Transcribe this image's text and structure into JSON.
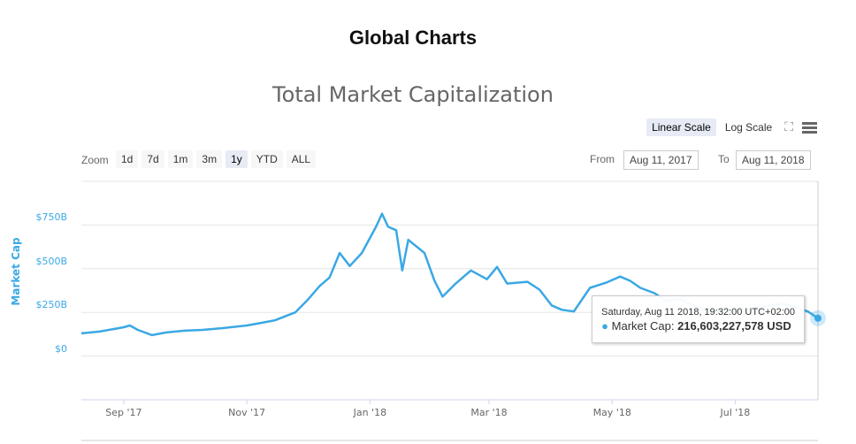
{
  "heading": "Global Charts",
  "chart_data": {
    "type": "line",
    "title": "Total Market Capitalization",
    "ylabel": "Market Cap",
    "ylim": [
      -250,
      1000
    ],
    "yticks": [
      {
        "v": 0,
        "label": "$0"
      },
      {
        "v": 250,
        "label": "$250B"
      },
      {
        "v": 500,
        "label": "$500B"
      },
      {
        "v": 750,
        "label": "$750B"
      }
    ],
    "xlim": [
      "2017-08-11",
      "2018-08-11"
    ],
    "xticks": [
      {
        "d": "2017-09-01",
        "label": "Sep '17"
      },
      {
        "d": "2017-11-01",
        "label": "Nov '17"
      },
      {
        "d": "2018-01-01",
        "label": "Jan '18"
      },
      {
        "d": "2018-03-01",
        "label": "Mar '18"
      },
      {
        "d": "2018-05-01",
        "label": "May '18"
      },
      {
        "d": "2018-07-01",
        "label": "Jul '18"
      }
    ],
    "grid": true,
    "color": "#3aa8e4",
    "series": [
      {
        "name": "Market Cap",
        "unit": "billion USD",
        "points": [
          [
            "2017-08-11",
            130
          ],
          [
            "2017-08-20",
            140
          ],
          [
            "2017-09-01",
            165
          ],
          [
            "2017-09-04",
            175
          ],
          [
            "2017-09-08",
            150
          ],
          [
            "2017-09-15",
            120
          ],
          [
            "2017-09-22",
            135
          ],
          [
            "2017-10-01",
            145
          ],
          [
            "2017-10-10",
            150
          ],
          [
            "2017-10-20",
            160
          ],
          [
            "2017-11-01",
            175
          ],
          [
            "2017-11-08",
            190
          ],
          [
            "2017-11-15",
            205
          ],
          [
            "2017-11-25",
            250
          ],
          [
            "2017-12-01",
            320
          ],
          [
            "2017-12-07",
            400
          ],
          [
            "2017-12-12",
            450
          ],
          [
            "2017-12-17",
            590
          ],
          [
            "2017-12-22",
            515
          ],
          [
            "2017-12-28",
            590
          ],
          [
            "2018-01-04",
            740
          ],
          [
            "2018-01-07",
            815
          ],
          [
            "2018-01-10",
            740
          ],
          [
            "2018-01-14",
            720
          ],
          [
            "2018-01-17",
            490
          ],
          [
            "2018-01-20",
            665
          ],
          [
            "2018-01-28",
            590
          ],
          [
            "2018-02-02",
            430
          ],
          [
            "2018-02-06",
            340
          ],
          [
            "2018-02-12",
            410
          ],
          [
            "2018-02-20",
            490
          ],
          [
            "2018-02-28",
            440
          ],
          [
            "2018-03-05",
            510
          ],
          [
            "2018-03-10",
            415
          ],
          [
            "2018-03-20",
            425
          ],
          [
            "2018-03-26",
            380
          ],
          [
            "2018-04-01",
            290
          ],
          [
            "2018-04-06",
            265
          ],
          [
            "2018-04-12",
            255
          ],
          [
            "2018-04-20",
            390
          ],
          [
            "2018-04-28",
            420
          ],
          [
            "2018-05-05",
            455
          ],
          [
            "2018-05-10",
            430
          ],
          [
            "2018-05-15",
            390
          ],
          [
            "2018-05-22",
            360
          ],
          [
            "2018-05-28",
            315
          ],
          [
            "2018-06-03",
            330
          ],
          [
            "2018-06-10",
            290
          ],
          [
            "2018-06-20",
            255
          ],
          [
            "2018-07-01",
            265
          ],
          [
            "2018-07-10",
            275
          ],
          [
            "2018-07-18",
            290
          ],
          [
            "2018-07-25",
            300
          ],
          [
            "2018-08-01",
            275
          ],
          [
            "2018-08-06",
            255
          ],
          [
            "2018-08-11",
            216.6
          ]
        ]
      }
    ]
  },
  "toolbar": {
    "linear": "Linear Scale",
    "log": "Log Scale",
    "zoom_label": "Zoom",
    "zoom_options": [
      "1d",
      "7d",
      "1m",
      "3m",
      "1y",
      "YTD",
      "ALL"
    ],
    "selected_zoom": "1y",
    "from_label": "From",
    "from_value": "Aug 11, 2017",
    "to_label": "To",
    "to_value": "Aug 11, 2018"
  },
  "tooltip": {
    "date": "Saturday, Aug 11 2018, 19:32:00 UTC+02:00",
    "series": "Market Cap: ",
    "value": "216,603,227,578 USD"
  }
}
